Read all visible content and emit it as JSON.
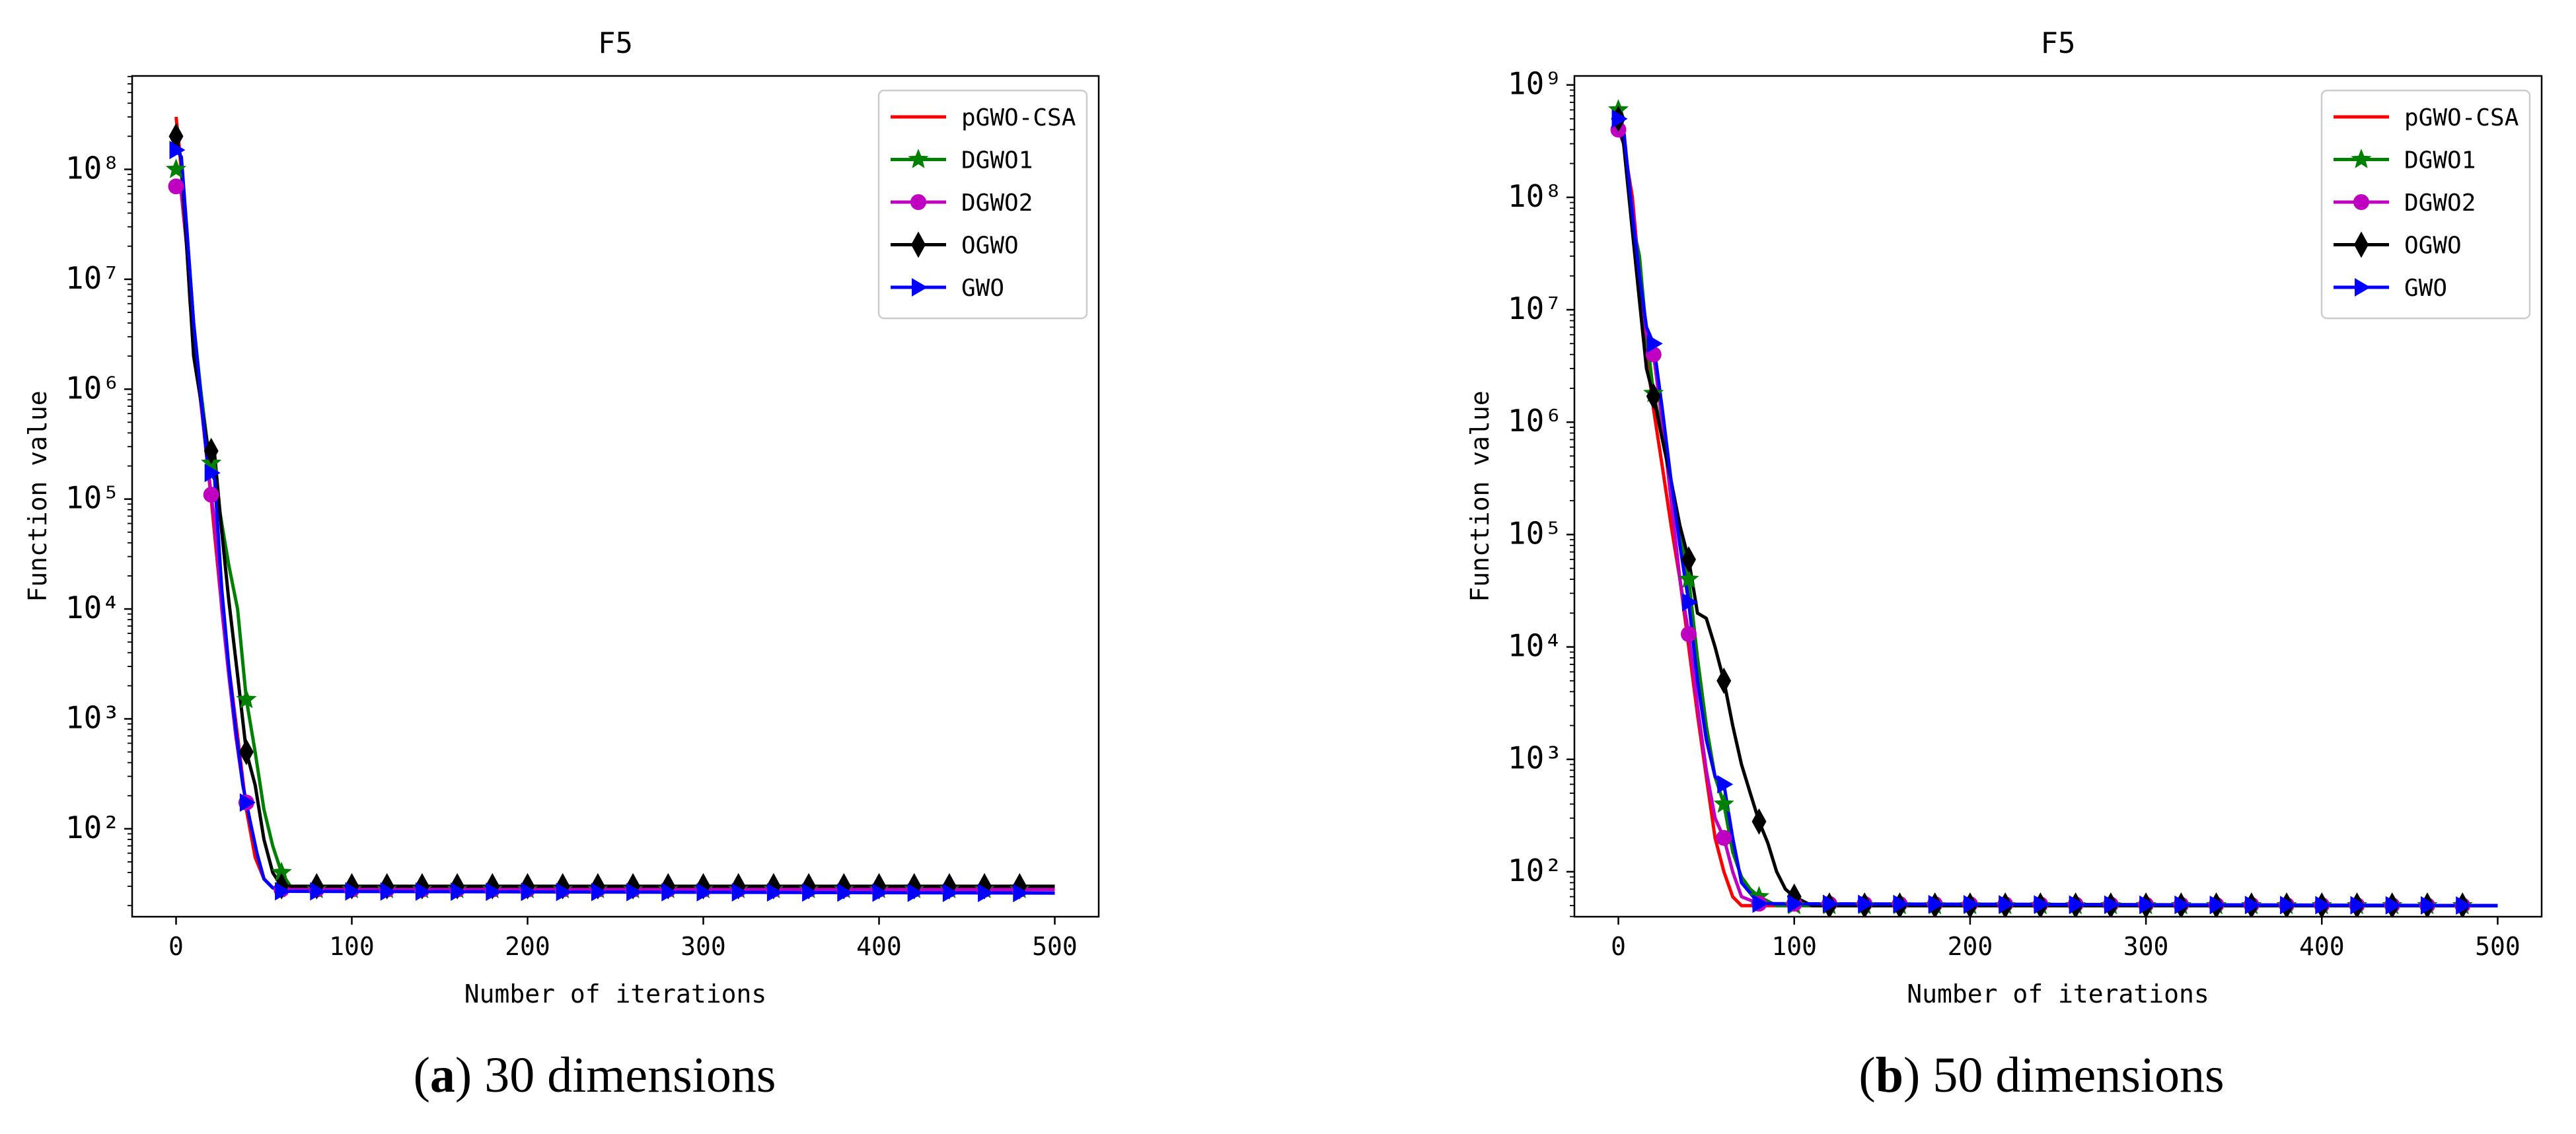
{
  "chart_data": [
    {
      "type": "line",
      "title": "F5",
      "caption": {
        "letter": "a",
        "text": "30 dimensions"
      },
      "xlabel": "Number of iterations",
      "ylabel": "Function value",
      "yscale": "log",
      "xlim": [
        -25,
        525
      ],
      "ylim_exp": [
        1.2,
        8.85
      ],
      "xticks": [
        0,
        100,
        200,
        300,
        400,
        500
      ],
      "yticks": [
        2,
        3,
        4,
        5,
        6,
        7,
        8
      ],
      "legend_position": "top-right",
      "series": [
        {
          "name": "pGWO-CSA",
          "color": "#ff0000",
          "marker": "none",
          "x": [
            0,
            2,
            5,
            8,
            12,
            16,
            20,
            25,
            30,
            35,
            40,
            45,
            50,
            55,
            60,
            80,
            500
          ],
          "y": [
            300000000.0,
            150000000.0,
            40000000.0,
            6000000.0,
            1500000.0,
            400000.0,
            100000.0,
            15000.0,
            3000,
            700,
            150,
            55,
            35,
            29,
            28,
            28,
            28
          ]
        },
        {
          "name": "DGWO1",
          "color": "#008000",
          "marker": "star",
          "x": [
            0,
            3,
            6,
            10,
            14,
            18,
            22,
            26,
            30,
            35,
            40,
            45,
            50,
            55,
            60,
            65,
            80,
            500
          ],
          "y": [
            100000000.0,
            90000000.0,
            30000000.0,
            4000000.0,
            1000000.0,
            300000.0,
            150000.0,
            60000.0,
            25000.0,
            10000.0,
            1500,
            500,
            150,
            70,
            40,
            30,
            28,
            28
          ]
        },
        {
          "name": "DGWO2",
          "color": "#c000c0",
          "marker": "circle",
          "x": [
            0,
            3,
            6,
            10,
            14,
            18,
            22,
            26,
            30,
            34,
            38,
            42,
            46,
            50,
            55,
            60,
            500
          ],
          "y": [
            70000000.0,
            60000000.0,
            20000000.0,
            3000000.0,
            800000.0,
            200000.0,
            60000.0,
            10000.0,
            2500,
            700,
            250,
            120,
            60,
            35,
            29,
            28,
            28
          ]
        },
        {
          "name": "OGWO",
          "color": "#000000",
          "marker": "diamond",
          "x": [
            0,
            3,
            6,
            10,
            14,
            18,
            22,
            26,
            30,
            35,
            40,
            45,
            50,
            55,
            60,
            80,
            500
          ],
          "y": [
            200000000.0,
            120000000.0,
            20000000.0,
            2000000.0,
            800000.0,
            300000.0,
            250000.0,
            50000.0,
            12000.0,
            2500,
            500,
            250,
            80,
            40,
            30,
            30,
            30
          ]
        },
        {
          "name": "GWO",
          "color": "#0000ff",
          "marker": "triangle",
          "x": [
            0,
            3,
            6,
            10,
            14,
            18,
            22,
            26,
            30,
            34,
            38,
            42,
            46,
            50,
            55,
            60,
            500
          ],
          "y": [
            150000000.0,
            130000000.0,
            30000000.0,
            4000000.0,
            900000.0,
            200000.0,
            150000.0,
            15000.0,
            3000,
            800,
            250,
            120,
            60,
            35,
            29,
            27,
            26
          ]
        }
      ]
    },
    {
      "type": "line",
      "title": "F5",
      "caption": {
        "letter": "b",
        "text": "50 dimensions"
      },
      "xlabel": "Number of iterations",
      "ylabel": "Function value",
      "yscale": "log",
      "xlim": [
        -25,
        525
      ],
      "ylim_exp": [
        1.6,
        9.08
      ],
      "xticks": [
        0,
        100,
        200,
        300,
        400,
        500
      ],
      "yticks": [
        2,
        3,
        4,
        5,
        6,
        7,
        8,
        9
      ],
      "legend_position": "top-right",
      "series": [
        {
          "name": "pGWO-CSA",
          "color": "#ff0000",
          "marker": "none",
          "x": [
            0,
            3,
            8,
            12,
            16,
            20,
            25,
            30,
            35,
            40,
            45,
            50,
            55,
            60,
            65,
            70,
            80,
            500
          ],
          "y": [
            500000000.0,
            300000000.0,
            100000000.0,
            20000000.0,
            4000000.0,
            1300000.0,
            400000.0,
            120000.0,
            40000.0,
            10000.0,
            2500,
            700,
            200,
            100,
            60,
            50,
            50,
            50
          ]
        },
        {
          "name": "DGWO1",
          "color": "#008000",
          "marker": "star",
          "x": [
            0,
            3,
            8,
            12,
            16,
            20,
            25,
            30,
            35,
            40,
            45,
            50,
            55,
            60,
            65,
            70,
            75,
            80,
            90,
            500
          ],
          "y": [
            600000000.0,
            400000000.0,
            60000000.0,
            30000000.0,
            6000000.0,
            1800000.0,
            800000.0,
            300000.0,
            100000.0,
            40000.0,
            8000,
            2000,
            700,
            400,
            150,
            90,
            70,
            60,
            50,
            50
          ]
        },
        {
          "name": "DGWO2",
          "color": "#c000c0",
          "marker": "circle",
          "x": [
            0,
            3,
            8,
            12,
            16,
            20,
            25,
            30,
            35,
            40,
            45,
            50,
            55,
            60,
            65,
            70,
            80,
            500
          ],
          "y": [
            400000000.0,
            300000000.0,
            80000000.0,
            20000000.0,
            6000000.0,
            4000000.0,
            1000000.0,
            200000.0,
            40000.0,
            13000.0,
            3000,
            800,
            300,
            200,
            100,
            60,
            52,
            50
          ]
        },
        {
          "name": "OGWO",
          "color": "#000000",
          "marker": "diamond",
          "x": [
            0,
            3,
            8,
            12,
            16,
            20,
            25,
            30,
            35,
            40,
            45,
            50,
            55,
            60,
            65,
            70,
            75,
            80,
            85,
            90,
            95,
            100,
            110,
            500
          ],
          "y": [
            500000000.0,
            300000000.0,
            50000000.0,
            12000000.0,
            3000000.0,
            1700000.0,
            700000.0,
            300000.0,
            120000.0,
            60000.0,
            20000.0,
            18000.0,
            10000.0,
            5000,
            2000,
            900,
            500,
            280,
            180,
            100,
            70,
            60,
            50,
            50
          ]
        },
        {
          "name": "GWO",
          "color": "#0000ff",
          "marker": "triangle",
          "x": [
            0,
            3,
            8,
            12,
            16,
            20,
            25,
            30,
            35,
            40,
            45,
            50,
            55,
            60,
            65,
            70,
            80,
            500
          ],
          "y": [
            500000000.0,
            400000000.0,
            70000000.0,
            20000000.0,
            7000000.0,
            5000000.0,
            1300000.0,
            300000.0,
            80000.0,
            25000.0,
            5000,
            1500,
            700,
            600,
            200,
            80,
            52,
            50
          ]
        }
      ]
    }
  ]
}
